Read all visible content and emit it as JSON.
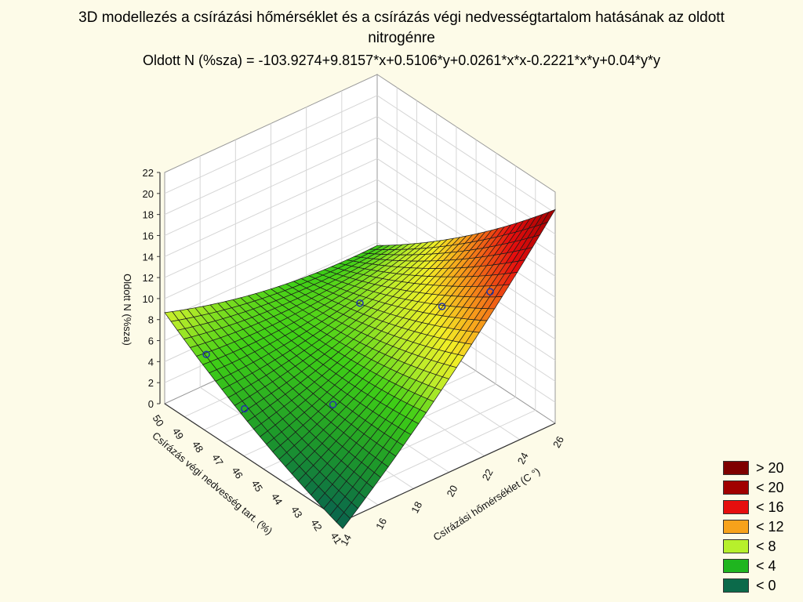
{
  "title_line1": "3D modellezés a  csírázási hőmérséklet és a csírázás végi nedvességtartalom hatásának az oldott",
  "title_line2": "nitrogénre",
  "equation": "Oldott N (%sza) = -103.9274+9.8157*x+0.5106*y+0.0261*x*x-0.2221*x*y+0.04*y*y",
  "chart_data": {
    "type": "surface3d",
    "title": "3D modellezés a  csírázási hőmérséklet és a csírázás végi nedvességtartalom hatásának az oldott nitrogénre",
    "equation": "Oldott N (%sza) = -103.9274+9.8157*x+0.5106*y+0.0261*x*x-0.2221*x*y+0.04*y*y",
    "coefficients": {
      "c0": -103.9274,
      "x": 9.8157,
      "y": 0.5106,
      "xx": 0.0261,
      "xy": -0.2221,
      "yy": 0.04
    },
    "x_label": "Csírázási hőmérséklet (C °)",
    "y_label": "Csírázás végi nedvesség tart. (%)",
    "z_label": "Oldott N (%sza)",
    "x_range": [
      14,
      26
    ],
    "y_range": [
      41,
      50
    ],
    "z_range": [
      0,
      22
    ],
    "x_ticks": [
      "14",
      "16",
      "18",
      "20",
      "22",
      "24",
      "26"
    ],
    "y_ticks": [
      "41",
      "42",
      "43",
      "44",
      "45",
      "46",
      "47",
      "48",
      "49",
      "50"
    ],
    "z_ticks": [
      "0",
      "2",
      "4",
      "6",
      "8",
      "10",
      "12",
      "14",
      "16",
      "18",
      "20",
      "22"
    ],
    "grid": true,
    "observed_points": [
      {
        "x": 14.9,
        "y": 48.7,
        "z": 5.6
      },
      {
        "x": 14.6,
        "y": 46.5,
        "z": 3.4
      },
      {
        "x": 16.8,
        "y": 44.0,
        "z": 5.2
      },
      {
        "x": 20.0,
        "y": 45.5,
        "z": 10.5
      },
      {
        "x": 22.4,
        "y": 43.5,
        "z": 10.8
      },
      {
        "x": 24.0,
        "y": 42.5,
        "z": 12.2
      }
    ],
    "legend": {
      "position": "bottom-right",
      "entries": [
        {
          "label": "> 20",
          "color": "#7f0000"
        },
        {
          "label": "< 20",
          "color": "#a10000"
        },
        {
          "label": "< 16",
          "color": "#e60e0e"
        },
        {
          "label": "< 12",
          "color": "#f7a21b"
        },
        {
          "label": "< 8",
          "color": "#b7f02c"
        },
        {
          "label": "< 4",
          "color": "#1fb51f"
        },
        {
          "label": "< 0",
          "color": "#0b6a4a"
        }
      ]
    }
  }
}
